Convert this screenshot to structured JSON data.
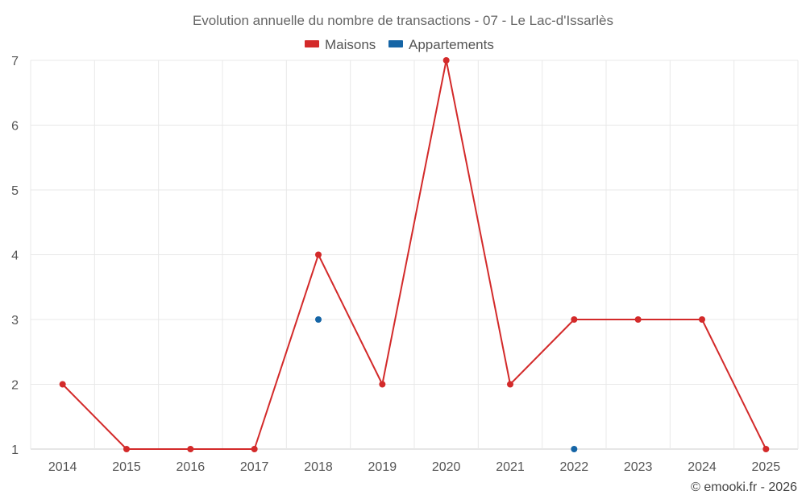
{
  "chart_data": {
    "type": "line",
    "title": "Evolution annuelle du nombre de transactions - 07 - Le Lac-d'Issarlès",
    "categories": [
      "2014",
      "2015",
      "2016",
      "2017",
      "2018",
      "2019",
      "2020",
      "2021",
      "2022",
      "2023",
      "2024",
      "2025"
    ],
    "ylim": [
      1,
      7
    ],
    "yticks": [
      1,
      2,
      3,
      4,
      5,
      6,
      7
    ],
    "grid": true,
    "legend_position": "top-center",
    "series": [
      {
        "name": "Maisons",
        "color": "#d32a2a",
        "connected": true,
        "values": [
          2,
          1,
          1,
          1,
          4,
          2,
          7,
          2,
          3,
          3,
          3,
          1
        ]
      },
      {
        "name": "Appartements",
        "color": "#1565a6",
        "connected": false,
        "values": [
          null,
          null,
          null,
          null,
          3,
          null,
          null,
          null,
          1,
          null,
          null,
          null
        ]
      }
    ]
  },
  "credit": "© emooki.fr - 2026"
}
